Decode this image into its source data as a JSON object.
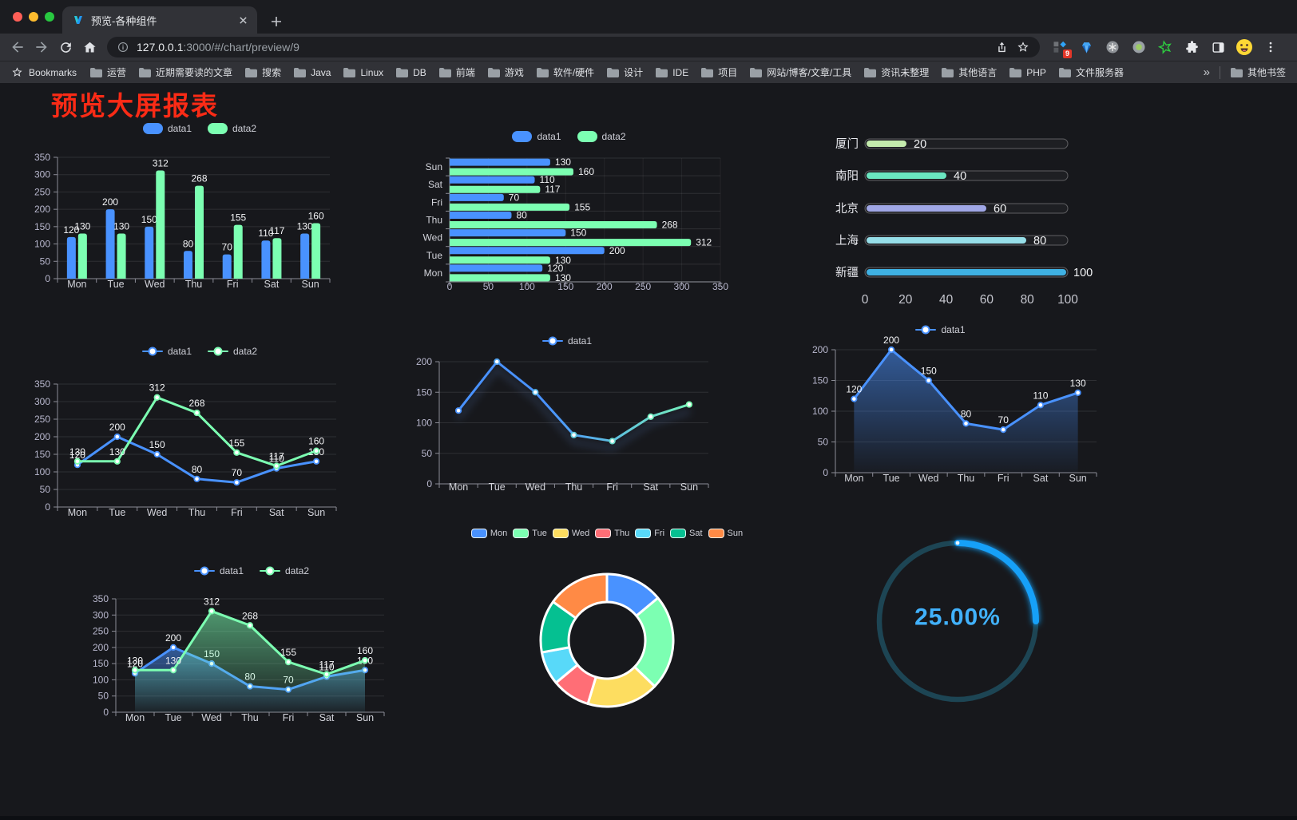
{
  "browser": {
    "window_buttons": [
      "close",
      "minimize",
      "zoom"
    ],
    "tab": {
      "title": "预览-各种组件",
      "favicon": "v-logo-icon"
    },
    "nav_icons": [
      "back-arrow-icon",
      "forward-arrow-icon",
      "reload-icon",
      "home-icon"
    ],
    "url": {
      "info_icon": "info-icon",
      "host": "127.0.0.1",
      "rest": ":3000/#/chart/preview/9",
      "share_icon": "share-icon",
      "star_icon": "star-icon"
    },
    "extensions": {
      "badge": "9",
      "icons": [
        "extension-grid-icon",
        "blue-gem-icon",
        "gray-asterisk-icon",
        "green-dot-icon",
        "green-star-icon",
        "puzzle-icon",
        "side-panel-icon",
        "avatar-emoji-icon",
        "menu-dots-icon"
      ]
    },
    "bookmarks_bar": {
      "label": "Bookmarks",
      "folders": [
        "运营",
        "近期需要读的文章",
        "搜索",
        "Java",
        "Linux",
        "DB",
        "前端",
        "游戏",
        "软件/硬件",
        "设计",
        "IDE",
        "项目",
        "网站/博客/文章/工具",
        "资讯未整理",
        "其他语言",
        "PHP",
        "文件服务器"
      ],
      "overflow": "»",
      "other": "其他书签"
    }
  },
  "page": {
    "heading": "预览大屏报表",
    "heading_color": "#fa2b16",
    "background": "#17181c"
  },
  "chart_data": [
    {
      "id": "bar-grouped",
      "type": "bar",
      "categories": [
        "Mon",
        "Tue",
        "Wed",
        "Thu",
        "Fri",
        "Sat",
        "Sun"
      ],
      "series": [
        {
          "name": "data1",
          "color": "#4992ff",
          "values": [
            120,
            200,
            150,
            80,
            70,
            110,
            130
          ]
        },
        {
          "name": "data2",
          "color": "#7cffb2",
          "values": [
            130,
            130,
            312,
            268,
            155,
            117,
            160
          ]
        }
      ],
      "ylim": [
        0,
        350
      ],
      "ytick": 50,
      "legend_position": "top",
      "show_labels": true,
      "grid": true
    },
    {
      "id": "bar-horizontal",
      "type": "bar-horizontal",
      "categories": [
        "Mon",
        "Tue",
        "Wed",
        "Thu",
        "Fri",
        "Sat",
        "Sun"
      ],
      "series": [
        {
          "name": "data1",
          "color": "#4992ff",
          "values": [
            120,
            200,
            150,
            80,
            70,
            110,
            130
          ]
        },
        {
          "name": "data2",
          "color": "#7cffb2",
          "values": [
            130,
            130,
            312,
            268,
            155,
            117,
            160
          ]
        }
      ],
      "xlim": [
        0,
        350
      ],
      "xtick": 50,
      "legend_position": "top",
      "show_labels": true,
      "grid": true
    },
    {
      "id": "capsule-bars",
      "type": "capsule",
      "categories": [
        "厦门",
        "南阳",
        "北京",
        "上海",
        "新疆"
      ],
      "values": [
        20,
        40,
        60,
        80,
        100
      ],
      "colors": [
        "#c4ebad",
        "#6be6c1",
        "#a0a7e6",
        "#96dee8",
        "#3fb1e3"
      ],
      "xlim": [
        0,
        100
      ],
      "xticks": [
        0,
        20,
        40,
        60,
        80,
        100
      ],
      "show_labels": true
    },
    {
      "id": "line-grouped",
      "type": "line",
      "categories": [
        "Mon",
        "Tue",
        "Wed",
        "Thu",
        "Fri",
        "Sat",
        "Sun"
      ],
      "series": [
        {
          "name": "data1",
          "color": "#4992ff",
          "values": [
            120,
            200,
            150,
            80,
            70,
            110,
            130
          ]
        },
        {
          "name": "data2",
          "color": "#7cffb2",
          "values": [
            130,
            130,
            312,
            268,
            155,
            117,
            160
          ]
        }
      ],
      "ylim": [
        0,
        350
      ],
      "ytick": 50,
      "legend_position": "top",
      "show_labels": true,
      "grid": true
    },
    {
      "id": "line-gradient",
      "type": "line",
      "categories": [
        "Mon",
        "Tue",
        "Wed",
        "Thu",
        "Fri",
        "Sat",
        "Sun"
      ],
      "series": [
        {
          "name": "data1",
          "color": "#4992ff",
          "color_end": "#7cffb2",
          "values": [
            120,
            200,
            150,
            80,
            70,
            110,
            130
          ]
        }
      ],
      "ylim": [
        0,
        200
      ],
      "ytick": 50,
      "legend_position": "top",
      "show_labels": false,
      "shadow": true,
      "grid": true
    },
    {
      "id": "area-single",
      "type": "area",
      "categories": [
        "Mon",
        "Tue",
        "Wed",
        "Thu",
        "Fri",
        "Sat",
        "Sun"
      ],
      "series": [
        {
          "name": "data1",
          "color": "#4992ff",
          "values": [
            120,
            200,
            150,
            80,
            70,
            110,
            130
          ]
        }
      ],
      "ylim": [
        0,
        200
      ],
      "ytick": 50,
      "legend_position": "top",
      "show_labels": true,
      "grid": true
    },
    {
      "id": "area-grouped",
      "type": "area",
      "categories": [
        "Mon",
        "Tue",
        "Wed",
        "Thu",
        "Fri",
        "Sat",
        "Sun"
      ],
      "series": [
        {
          "name": "data1",
          "color": "#4992ff",
          "values": [
            120,
            200,
            150,
            80,
            70,
            110,
            130
          ]
        },
        {
          "name": "data2",
          "color": "#7cffb2",
          "values": [
            130,
            130,
            312,
            268,
            155,
            117,
            160
          ]
        }
      ],
      "ylim": [
        0,
        350
      ],
      "ytick": 50,
      "legend_position": "top",
      "show_labels": true,
      "grid": true
    },
    {
      "id": "donut",
      "type": "pie",
      "categories": [
        "Mon",
        "Tue",
        "Wed",
        "Thu",
        "Fri",
        "Sat",
        "Sun"
      ],
      "values": [
        120,
        200,
        150,
        80,
        70,
        110,
        130
      ],
      "colors": [
        "#4992ff",
        "#7cffb2",
        "#fddd60",
        "#ff6e76",
        "#58d9f9",
        "#05c091",
        "#ff8a45"
      ],
      "legend_position": "top"
    },
    {
      "id": "progress-gauge",
      "type": "gauge",
      "percent": 25,
      "label": "25.00%",
      "track_color": "#1d4554",
      "bar_color": "#18a0f8",
      "text_color": "#41b1fb"
    }
  ]
}
